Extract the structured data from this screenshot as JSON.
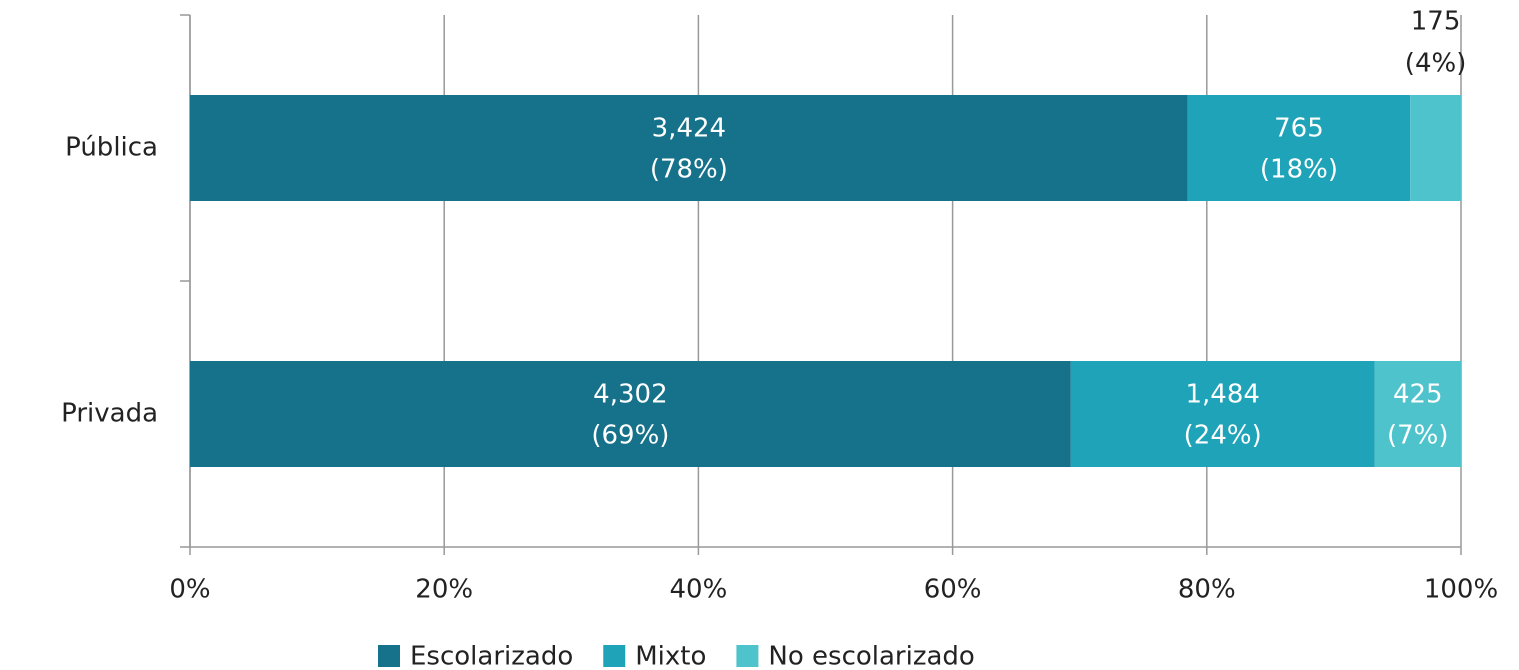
{
  "chart_data": {
    "type": "stacked-barh",
    "categories": [
      "Pública",
      "Privada"
    ],
    "series": [
      {
        "name": "Escolarizado",
        "color": "#16718a",
        "values": [
          78.5,
          69.3
        ],
        "value_labels": [
          [
            "3,424",
            "(78%)"
          ],
          [
            "4,302",
            "(69%)"
          ]
        ]
      },
      {
        "name": "Mixto",
        "color": "#1ea3b8",
        "values": [
          17.5,
          23.9
        ],
        "value_labels": [
          [
            "765",
            "(18%)"
          ],
          [
            "1,484",
            "(24%)"
          ]
        ]
      },
      {
        "name": "No escolarizado",
        "color": "#4fc3cc",
        "values": [
          4.0,
          6.8
        ],
        "value_labels": [
          [
            "175",
            "(4%)"
          ],
          [
            "425",
            "(7%)"
          ]
        ]
      }
    ],
    "xlim": [
      0,
      100
    ],
    "xticks": [
      {
        "value": 0,
        "label": "0%"
      },
      {
        "value": 20,
        "label": "20%"
      },
      {
        "value": 40,
        "label": "40%"
      },
      {
        "value": 60,
        "label": "60%"
      },
      {
        "value": 80,
        "label": "80%"
      },
      {
        "value": 100,
        "label": "100%"
      }
    ],
    "grid": true,
    "legend": "bottom"
  }
}
